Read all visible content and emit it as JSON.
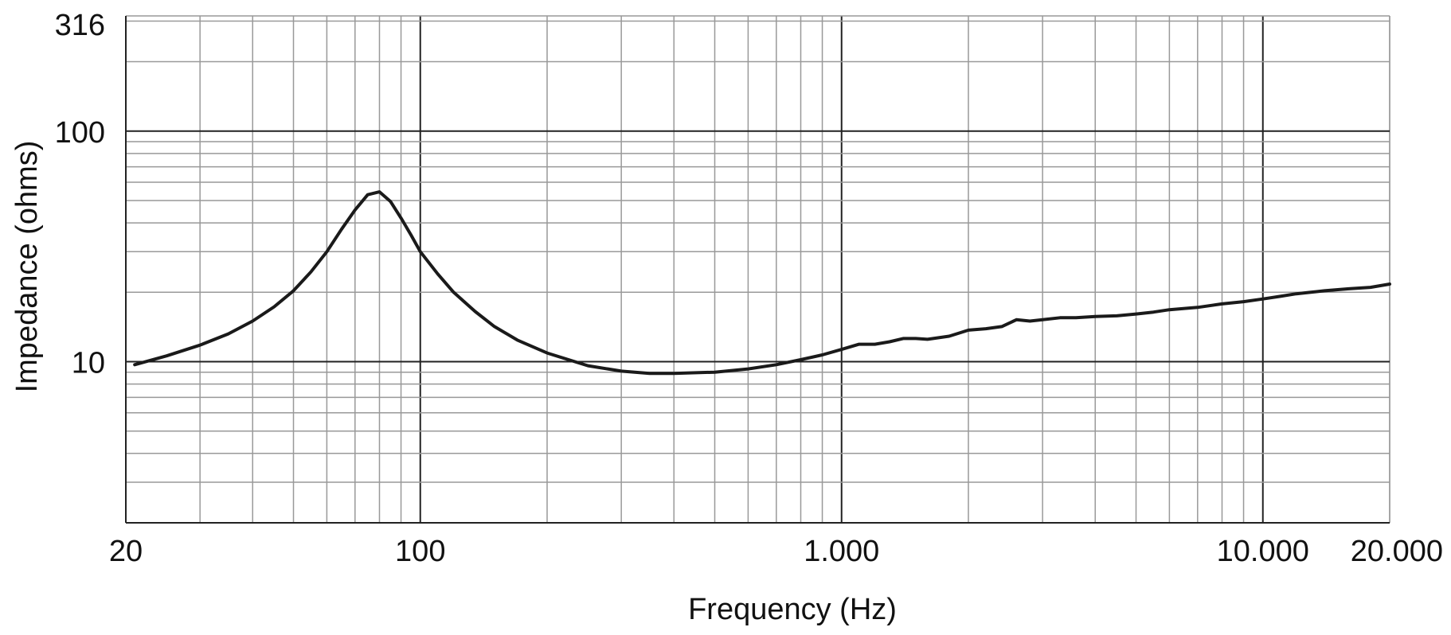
{
  "chart_data": {
    "type": "line",
    "xlabel": "Frequency (Hz)",
    "ylabel": "Impedance (ohms)",
    "xscale": "log",
    "yscale": "log",
    "xlim": [
      20,
      20000
    ],
    "ylim": [
      2,
      316
    ],
    "x_tick_labels": [
      {
        "value": 20,
        "label": "20"
      },
      {
        "value": 100,
        "label": "100"
      },
      {
        "value": 1000,
        "label": "1.000"
      },
      {
        "value": 10000,
        "label": "10.000"
      },
      {
        "value": 20000,
        "label": "20.000"
      }
    ],
    "y_tick_labels": [
      {
        "value": 10,
        "label": "10"
      },
      {
        "value": 100,
        "label": "100"
      },
      {
        "value": 316,
        "label": "316"
      }
    ],
    "grid": true,
    "line_color": "#1a1a1a",
    "grid_color": "#999999",
    "major_grid_color": "#222222",
    "series": [
      {
        "x": [
          21,
          25,
          30,
          35,
          40,
          45,
          50,
          55,
          60,
          65,
          70,
          75,
          80,
          85,
          90,
          95,
          100,
          110,
          120,
          135,
          150,
          170,
          200,
          250,
          300,
          350,
          400,
          500,
          600,
          700,
          800,
          900,
          1000,
          1100,
          1200,
          1300,
          1400,
          1500,
          1600,
          1700,
          1800,
          1900,
          2000,
          2200,
          2400,
          2600,
          2800,
          3000,
          3300,
          3600,
          4000,
          4500,
          5000,
          5500,
          6000,
          7000,
          8000,
          9000,
          10000,
          11000,
          12000,
          13000,
          14000,
          16000,
          18000,
          20000
        ],
        "y": [
          9.7,
          10.6,
          11.8,
          13.2,
          15.0,
          17.3,
          20.3,
          24.5,
          30.0,
          37.5,
          45.5,
          53.0,
          54.5,
          49.5,
          42.0,
          35.5,
          30.0,
          24.0,
          20.0,
          16.5,
          14.2,
          12.4,
          10.9,
          9.6,
          9.1,
          8.9,
          8.9,
          9.0,
          9.3,
          9.7,
          10.2,
          10.7,
          11.3,
          11.9,
          11.9,
          12.2,
          12.6,
          12.6,
          12.5,
          12.7,
          12.9,
          13.3,
          13.7,
          13.9,
          14.2,
          15.2,
          15.0,
          15.2,
          15.5,
          15.5,
          15.7,
          15.8,
          16.1,
          16.4,
          16.8,
          17.2,
          17.8,
          18.2,
          18.7,
          19.2,
          19.7,
          20.0,
          20.3,
          20.7,
          21.0,
          21.7
        ]
      }
    ]
  }
}
